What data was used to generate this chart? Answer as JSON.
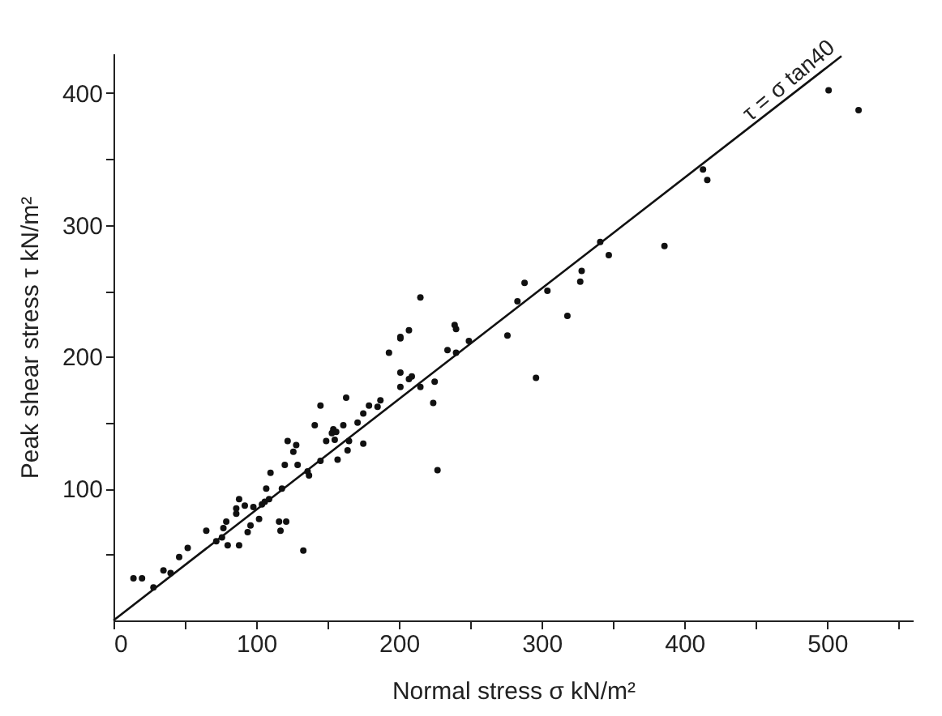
{
  "chart_data": {
    "type": "scatter",
    "xlabel": "Normal stress  σ kN/m²",
    "ylabel": "Peak shear stress  τ kN/m²",
    "xlim": [
      0,
      560
    ],
    "ylim": [
      0,
      430
    ],
    "xticks": [
      0,
      {
        "value": 50,
        "label": null
      },
      100,
      {
        "value": 150,
        "label": null
      },
      200,
      {
        "value": 250,
        "label": null
      },
      300,
      {
        "value": 350,
        "label": null
      },
      400,
      {
        "value": 450,
        "label": null
      },
      500,
      {
        "value": 550,
        "label": null
      }
    ],
    "yticks": [
      {
        "value": 50,
        "label": null
      },
      100,
      {
        "value": 150,
        "label": null
      },
      200,
      {
        "value": 250,
        "label": null
      },
      300,
      {
        "value": 350,
        "label": null
      },
      400
    ],
    "grid": false,
    "annotations": [
      "τ = σ tan40"
    ],
    "series": [
      {
        "marker": "circle",
        "color": "#111111",
        "x": [
          14,
          20,
          28,
          35,
          40,
          46,
          52,
          65,
          72,
          76,
          77,
          79,
          80,
          86,
          86,
          88,
          88,
          92,
          94,
          96,
          98,
          102,
          104,
          106,
          109,
          107,
          110,
          116,
          117,
          118,
          120,
          121,
          122,
          126,
          128,
          129,
          133,
          137,
          136,
          141,
          145,
          145,
          149,
          153,
          154,
          155,
          156,
          157,
          161,
          163,
          164,
          165,
          171,
          175,
          175,
          179,
          187,
          185,
          193,
          201,
          201,
          201,
          207,
          209,
          215,
          224,
          225,
          227,
          234,
          240,
          249,
          215,
          201,
          207,
          239,
          240,
          276,
          283,
          288,
          304,
          318,
          296,
          327,
          328,
          341,
          347,
          386,
          413,
          416,
          501,
          522
        ],
        "values": [
          32,
          32,
          25,
          38,
          36,
          48,
          55,
          68,
          60,
          63,
          70,
          75,
          57,
          81,
          85,
          92,
          57,
          87,
          67,
          72,
          86,
          77,
          88,
          90,
          92,
          100,
          112,
          75,
          68,
          100,
          118,
          75,
          136,
          128,
          133,
          118,
          53,
          110,
          113,
          148,
          163,
          121,
          136,
          142,
          145,
          137,
          143,
          122,
          148,
          169,
          129,
          136,
          150,
          134,
          157,
          163,
          167,
          162,
          203,
          214,
          188,
          177,
          183,
          185,
          177,
          165,
          181,
          114,
          205,
          203,
          212,
          245,
          215,
          220,
          224,
          221,
          216,
          242,
          256,
          250,
          231,
          184,
          257,
          265,
          287,
          277,
          284,
          342,
          334,
          402,
          387
        ]
      },
      {
        "type": "line",
        "marker": "none",
        "color": "#111111",
        "line_style": "solid",
        "x": [
          0,
          510
        ],
        "values": [
          0,
          428
        ]
      }
    ]
  }
}
